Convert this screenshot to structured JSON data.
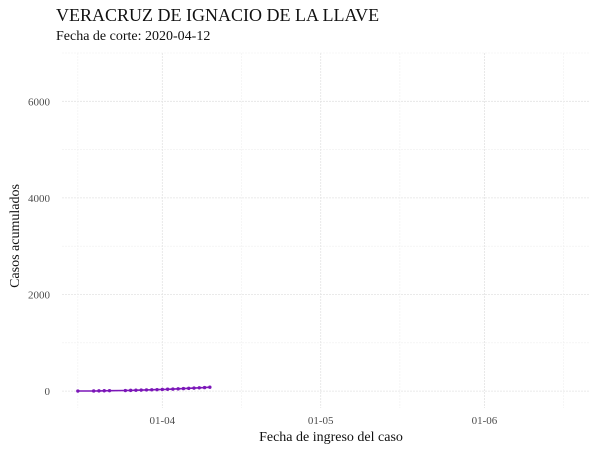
{
  "title": "VERACRUZ DE IGNACIO DE LA LLAVE",
  "subtitle": "Fecha de corte: 2020-04-12",
  "chart_data": {
    "type": "line",
    "xlabel": "Fecha de ingreso del caso",
    "ylabel": "Casos acumulados",
    "x_ticks": [
      "01-04",
      "01-05",
      "01-06"
    ],
    "y_ticks": [
      0,
      2000,
      4000,
      6000
    ],
    "xlim": [
      "2020-03-13",
      "2020-06-21"
    ],
    "ylim": [
      -350,
      7000
    ],
    "grid": true,
    "series_color": "#7b16b8",
    "series": [
      {
        "x": [
          "2020-03-16",
          "2020-03-19",
          "2020-03-20",
          "2020-03-21",
          "2020-03-22",
          "2020-03-25",
          "2020-03-26",
          "2020-03-27",
          "2020-03-28",
          "2020-03-29",
          "2020-03-30",
          "2020-03-31",
          "2020-04-01",
          "2020-04-02",
          "2020-04-03",
          "2020-04-04",
          "2020-04-05",
          "2020-04-06",
          "2020-04-07",
          "2020-04-08",
          "2020-04-09",
          "2020-04-10"
        ],
        "values": [
          1,
          3,
          5,
          7,
          9,
          12,
          15,
          18,
          21,
          24,
          27,
          30,
          34,
          38,
          42,
          47,
          52,
          57,
          62,
          68,
          73,
          80
        ]
      }
    ]
  }
}
